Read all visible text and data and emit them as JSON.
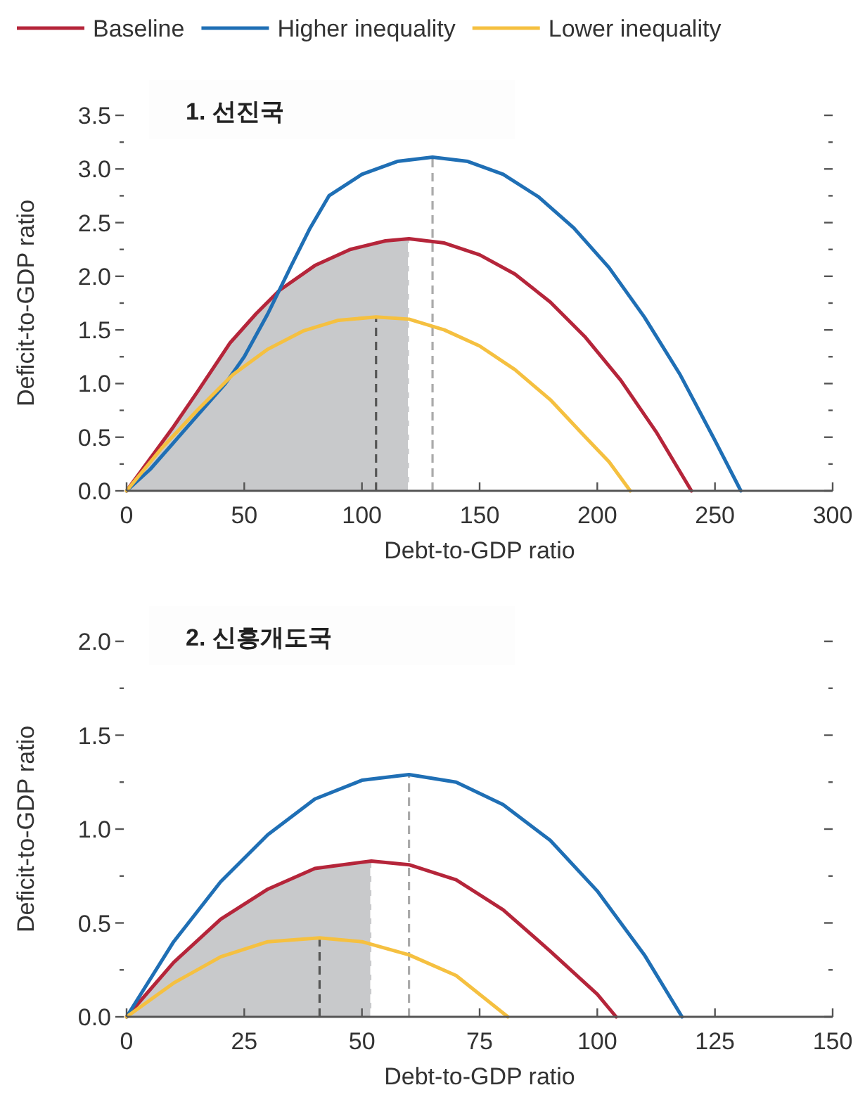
{
  "chart_data": [
    {
      "type": "line",
      "title": "**1. 선진국**",
      "xlabel": "Debt-to-GDP ratio",
      "ylabel": "Deficit-to-GDP ratio",
      "legend": "top",
      "xlim": [
        0,
        300
      ],
      "xticks": [
        0,
        50,
        100,
        150,
        200,
        250,
        300
      ],
      "ylim": [
        0,
        3.5
      ],
      "yticks": [
        {
          "value": 0,
          "label": "0.0"
        },
        {
          "value": 0.25,
          "label": null
        },
        {
          "value": 0.5,
          "label": "0.5"
        },
        {
          "value": 0.75,
          "label": null
        },
        {
          "value": 1,
          "label": "1.0"
        },
        {
          "value": 1.25,
          "label": null
        },
        {
          "value": 1.5,
          "label": "1.5"
        },
        {
          "value": 1.75,
          "label": null
        },
        {
          "value": 2,
          "label": "2.0"
        },
        {
          "value": 2.25,
          "label": null
        },
        {
          "value": 2.5,
          "label": "2.5"
        },
        {
          "value": 2.75,
          "label": null
        },
        {
          "value": 3,
          "label": "3.0"
        },
        {
          "value": 3.25,
          "label": null
        },
        {
          "value": 3.5,
          "label": "3.5"
        }
      ],
      "series": [
        {
          "type": "area",
          "color": "#c8c9cb",
          "x": [
            0,
            10,
            20,
            30,
            44,
            55,
            65,
            80,
            95,
            110,
            120
          ],
          "values": [
            0,
            0.3,
            0.6,
            0.92,
            1.38,
            1.65,
            1.87,
            2.1,
            2.25,
            2.33,
            2.35
          ]
        },
        {
          "type": "line",
          "line_style": "dashed",
          "color": "#555555",
          "x": [
            106,
            106
          ],
          "values": [
            0,
            1.62
          ]
        },
        {
          "type": "line",
          "line_style": "dashed",
          "color": "#ffffff",
          "x": [
            120,
            120
          ],
          "values": [
            0,
            2.35
          ]
        },
        {
          "type": "line",
          "line_style": "dashed",
          "color": "#aaaaaa",
          "x": [
            130,
            130
          ],
          "values": [
            0,
            3.11
          ]
        },
        {
          "name": "Baseline",
          "color": "#b5253a",
          "x": [
            0,
            10,
            20,
            30,
            44,
            55,
            65,
            80,
            95,
            110,
            120,
            135,
            150,
            165,
            180,
            195,
            210,
            225,
            240
          ],
          "values": [
            0,
            0.3,
            0.6,
            0.92,
            1.38,
            1.65,
            1.87,
            2.1,
            2.25,
            2.33,
            2.35,
            2.31,
            2.2,
            2.02,
            1.76,
            1.43,
            1.03,
            0.55,
            0
          ]
        },
        {
          "name": "Higher inequality",
          "color": "#1f6fb5",
          "x": [
            0,
            10,
            20,
            30,
            42,
            50,
            60,
            70,
            78,
            86,
            100,
            115,
            130,
            145,
            160,
            175,
            190,
            205,
            220,
            235,
            250,
            261
          ],
          "values": [
            0,
            0.2,
            0.45,
            0.7,
            1,
            1.25,
            1.65,
            2.1,
            2.45,
            2.75,
            2.95,
            3.07,
            3.11,
            3.07,
            2.95,
            2.74,
            2.45,
            2.08,
            1.62,
            1.09,
            0.47,
            0
          ]
        },
        {
          "name": "Lower inequality",
          "color": "#f5c040",
          "x": [
            0,
            15,
            30,
            45,
            60,
            75,
            90,
            106,
            120,
            135,
            150,
            165,
            180,
            195,
            205,
            214
          ],
          "values": [
            0,
            0.4,
            0.75,
            1.08,
            1.32,
            1.49,
            1.59,
            1.62,
            1.6,
            1.5,
            1.35,
            1.13,
            0.85,
            0.5,
            0.27,
            0
          ]
        }
      ]
    },
    {
      "type": "line",
      "title": "**2. 신흥개도국**",
      "xlabel": "Debt-to-GDP ratio",
      "ylabel": "Deficit-to-GDP ratio",
      "xlim": [
        0,
        150
      ],
      "xticks": [
        0,
        25,
        50,
        75,
        100,
        125,
        150
      ],
      "ylim": [
        0,
        2
      ],
      "yticks": [
        {
          "value": 0,
          "label": "0.0"
        },
        {
          "value": 0.25,
          "label": null
        },
        {
          "value": 0.5,
          "label": "0.5"
        },
        {
          "value": 0.75,
          "label": null
        },
        {
          "value": 1,
          "label": "1.0"
        },
        {
          "value": 1.25,
          "label": null
        },
        {
          "value": 1.5,
          "label": "1.5"
        },
        {
          "value": 1.75,
          "label": null
        },
        {
          "value": 2,
          "label": "2.0"
        }
      ],
      "series": [
        {
          "type": "area",
          "color": "#c8c9cb",
          "x": [
            0,
            10,
            20,
            30,
            40,
            52
          ],
          "values": [
            0,
            0.29,
            0.52,
            0.68,
            0.79,
            0.83
          ]
        },
        {
          "type": "line",
          "line_style": "dashed",
          "color": "#555555",
          "x": [
            41,
            41
          ],
          "values": [
            0,
            0.42
          ]
        },
        {
          "type": "line",
          "line_style": "dashed",
          "color": "#ffffff",
          "x": [
            52,
            52
          ],
          "values": [
            0,
            0.83
          ]
        },
        {
          "type": "line",
          "line_style": "dashed",
          "color": "#aaaaaa",
          "x": [
            60,
            60
          ],
          "values": [
            0,
            1.29
          ]
        },
        {
          "color": "#b5253a",
          "x": [
            0,
            10,
            20,
            30,
            40,
            52,
            60,
            70,
            80,
            90,
            100,
            104
          ],
          "values": [
            0,
            0.29,
            0.52,
            0.68,
            0.79,
            0.83,
            0.81,
            0.73,
            0.57,
            0.35,
            0.12,
            0
          ]
        },
        {
          "color": "#1f6fb5",
          "x": [
            0,
            10,
            20,
            30,
            40,
            50,
            60,
            70,
            80,
            90,
            100,
            110,
            118
          ],
          "values": [
            0,
            0.4,
            0.72,
            0.97,
            1.16,
            1.26,
            1.29,
            1.25,
            1.13,
            0.94,
            0.67,
            0.33,
            0
          ]
        },
        {
          "color": "#f5c040",
          "x": [
            0,
            10,
            20,
            30,
            41,
            50,
            60,
            70,
            81
          ],
          "values": [
            0,
            0.18,
            0.32,
            0.4,
            0.42,
            0.4,
            0.33,
            0.22,
            0
          ]
        }
      ]
    }
  ]
}
